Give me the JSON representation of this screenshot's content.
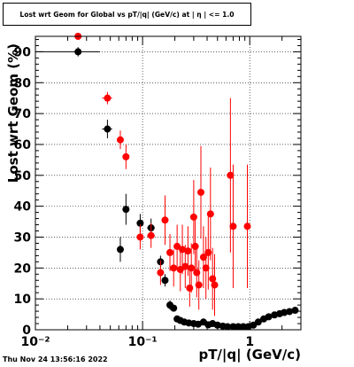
{
  "title": "Lost wrt Geom for Global vs pT/|q| (GeV/c) at | η | <= 1.0",
  "timestamp": "Thu Nov 24 13:56:16 2022",
  "chart_data": {
    "type": "scatter",
    "title": "Lost wrt Geom for Global vs pT/|q| (GeV/c) at | η | <= 1.0",
    "xlabel": "pT/|q| (GeV/c)",
    "ylabel": "Lost wrt Geom (%)",
    "xscale": "log",
    "xlim": [
      0.01,
      3.0
    ],
    "ylim": [
      0,
      95
    ],
    "grid": true,
    "x_ticks": [
      {
        "value": 0.01,
        "label": "10⁻²"
      },
      {
        "value": 0.1,
        "label": "10⁻¹"
      },
      {
        "value": 1,
        "label": "1"
      }
    ],
    "y_ticks": [
      0,
      10,
      20,
      30,
      40,
      50,
      60,
      70,
      80,
      90
    ],
    "series": [
      {
        "color": "#000000",
        "points": [
          {
            "x": 0.025,
            "y": 90,
            "xerr": [
              0.01,
              0.04
            ],
            "yerr": 1.5
          },
          {
            "x": 0.047,
            "y": 65,
            "xerr": [
              0.042,
              0.052
            ],
            "yerr": 3
          },
          {
            "x": 0.062,
            "y": 26,
            "xerr": [
              0.058,
              0.066
            ],
            "yerr": 4
          },
          {
            "x": 0.07,
            "y": 39,
            "xerr": [
              0.066,
              0.075
            ],
            "yerr": 5
          },
          {
            "x": 0.095,
            "y": 34.5,
            "xerr": [
              0.088,
              0.1
            ],
            "yerr": 3
          },
          {
            "x": 0.12,
            "y": 33,
            "xerr": [
              0.11,
              0.13
            ],
            "yerr": 3
          },
          {
            "x": 0.147,
            "y": 22,
            "xerr": [
              0.14,
              0.155
            ],
            "yerr": 2
          },
          {
            "x": 0.162,
            "y": 16,
            "xerr": [
              0.155,
              0.17
            ],
            "yerr": 2
          },
          {
            "x": 0.18,
            "y": 8,
            "xerr": [
              0.17,
              0.19
            ],
            "yerr": 1.5
          },
          {
            "x": 0.195,
            "y": 7,
            "yerr": 1
          },
          {
            "x": 0.21,
            "y": 3.5,
            "yerr": 0.8
          },
          {
            "x": 0.225,
            "y": 3,
            "yerr": 0.8
          },
          {
            "x": 0.245,
            "y": 2.5,
            "yerr": 0.8
          },
          {
            "x": 0.27,
            "y": 2.2,
            "yerr": 0.8
          },
          {
            "x": 0.3,
            "y": 2,
            "yerr": 0.8
          },
          {
            "x": 0.33,
            "y": 1.8,
            "yerr": 0.8
          },
          {
            "x": 0.37,
            "y": 2.5,
            "yerr": 1
          },
          {
            "x": 0.41,
            "y": 1.6,
            "yerr": 0.8
          },
          {
            "x": 0.45,
            "y": 2,
            "yerr": 1
          },
          {
            "x": 0.5,
            "y": 1.5,
            "yerr": 0.8
          },
          {
            "x": 0.56,
            "y": 1.2,
            "yerr": 0.8
          },
          {
            "x": 0.62,
            "y": 1,
            "yerr": 0.6
          },
          {
            "x": 0.7,
            "y": 1,
            "yerr": 0.6
          },
          {
            "x": 0.78,
            "y": 1,
            "yerr": 0.6
          },
          {
            "x": 0.87,
            "y": 1,
            "yerr": 0.6
          },
          {
            "x": 0.97,
            "y": 1,
            "yerr": 0.6
          },
          {
            "x": 1.08,
            "y": 1.5,
            "yerr": 0.5
          },
          {
            "x": 1.2,
            "y": 2.5,
            "yerr": 0.5
          },
          {
            "x": 1.35,
            "y": 3.5,
            "yerr": 0.5
          },
          {
            "x": 1.5,
            "y": 4.2,
            "yerr": 0.5
          },
          {
            "x": 1.7,
            "y": 4.8,
            "yerr": 0.5
          },
          {
            "x": 1.9,
            "y": 5.2,
            "yerr": 0.5
          },
          {
            "x": 2.1,
            "y": 5.6,
            "yerr": 0.5
          },
          {
            "x": 2.35,
            "y": 5.9,
            "yerr": 0.5
          },
          {
            "x": 2.65,
            "y": 6.3,
            "yerr": 0.5
          }
        ]
      },
      {
        "color": "#ff0000",
        "points": [
          {
            "x": 0.025,
            "y": 95,
            "xerr": [
              0.01,
              0.04
            ],
            "yerr": 1
          },
          {
            "x": 0.047,
            "y": 75,
            "xerr": [
              0.042,
              0.052
            ],
            "yerr": 2
          },
          {
            "x": 0.062,
            "y": 61.5,
            "xerr": [
              0.058,
              0.066
            ],
            "yerr": 3
          },
          {
            "x": 0.07,
            "y": 56,
            "xerr": [
              0.066,
              0.075
            ],
            "yerr": 4
          },
          {
            "x": 0.095,
            "y": 30,
            "xerr": [
              0.088,
              0.1
            ],
            "yerr": 4
          },
          {
            "x": 0.12,
            "y": 30.5,
            "xerr": [
              0.11,
              0.13
            ],
            "yerr": 4
          },
          {
            "x": 0.147,
            "y": 18.5,
            "xerr": [
              0.14,
              0.155
            ],
            "yerr": 4
          },
          {
            "x": 0.162,
            "y": 35.5,
            "xerr": [
              0.155,
              0.17
            ],
            "yerr": 8
          },
          {
            "x": 0.18,
            "y": 25,
            "xerr": [
              0.17,
              0.19
            ],
            "yerr": 6
          },
          {
            "x": 0.195,
            "y": 20,
            "yerr": 6
          },
          {
            "x": 0.21,
            "y": 27,
            "yerr": 7
          },
          {
            "x": 0.225,
            "y": 19.5,
            "yerr": 7
          },
          {
            "x": 0.235,
            "y": 26,
            "yerr": 8
          },
          {
            "x": 0.25,
            "y": 20.5,
            "yerr": 7
          },
          {
            "x": 0.265,
            "y": 25.5,
            "yerr": 8
          },
          {
            "x": 0.275,
            "y": 13.5,
            "yerr": 6
          },
          {
            "x": 0.285,
            "y": 20,
            "yerr": 8
          },
          {
            "x": 0.3,
            "y": 36.5,
            "yerr": 12
          },
          {
            "x": 0.31,
            "y": 27,
            "yerr": 9
          },
          {
            "x": 0.32,
            "y": 18.5,
            "yerr": 8
          },
          {
            "x": 0.335,
            "y": 14.5,
            "yerr": 8
          },
          {
            "x": 0.35,
            "y": 44.5,
            "yerr": 15
          },
          {
            "x": 0.37,
            "y": 23.5,
            "yerr": 10
          },
          {
            "x": 0.39,
            "y": 20,
            "yerr": 10
          },
          {
            "x": 0.41,
            "y": 25,
            "yerr": 12
          },
          {
            "x": 0.43,
            "y": 37.5,
            "yerr": 15
          },
          {
            "x": 0.45,
            "y": 16.5,
            "yerr": 10
          },
          {
            "x": 0.47,
            "y": 14.5,
            "yerr": 10
          },
          {
            "x": 0.66,
            "y": 50,
            "yerr": 25
          },
          {
            "x": 0.7,
            "y": 33.5,
            "yerr": 20
          },
          {
            "x": 0.95,
            "y": 33.5,
            "yerr": 20
          }
        ]
      }
    ]
  }
}
